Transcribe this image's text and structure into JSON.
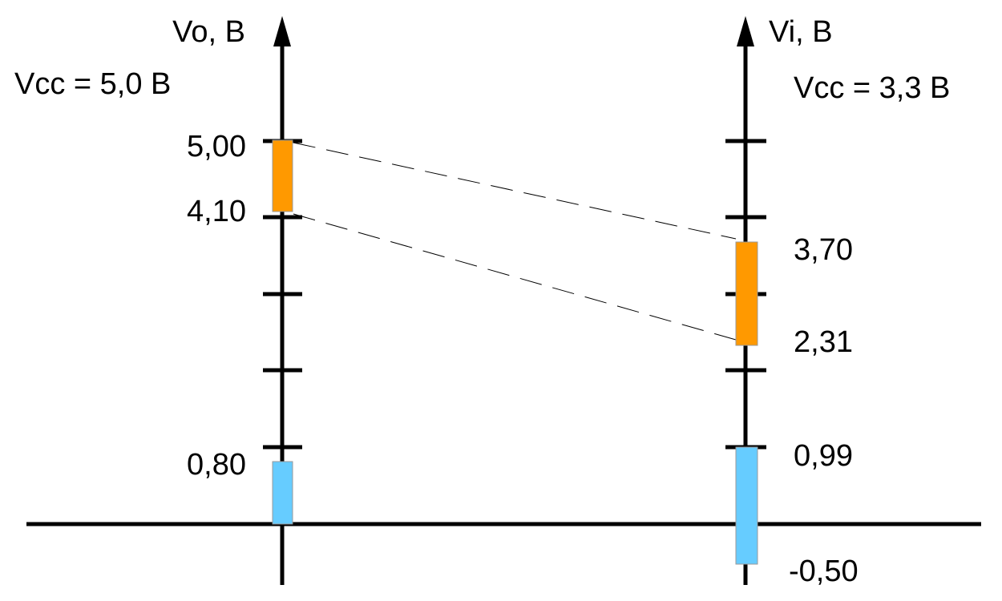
{
  "left_axis": {
    "label": "Vo, B",
    "vcc_label": "Vcc = 5,0 B",
    "tick_labels": {
      "high_max": "5,00",
      "high_min": "4,10",
      "low_max": "0,80"
    },
    "high_band": {
      "min": 4.1,
      "max": 5.0,
      "color": "#ff9900"
    },
    "low_band": {
      "min": 0.0,
      "max": 0.8,
      "color": "#66ccff"
    }
  },
  "right_axis": {
    "label": "Vi, B",
    "vcc_label": "Vcc = 3,3 B",
    "tick_labels": {
      "high_max": "3,70",
      "high_min": "2,31",
      "low_max": "0,99",
      "low_min": "-0,50"
    },
    "high_band": {
      "min": 2.31,
      "max": 3.7,
      "color": "#ff9900"
    },
    "low_band": {
      "min": -0.5,
      "max": 0.99,
      "color": "#66ccff"
    }
  },
  "colors": {
    "axis": "#000000",
    "high": "#ff9900",
    "low": "#66ccff"
  }
}
